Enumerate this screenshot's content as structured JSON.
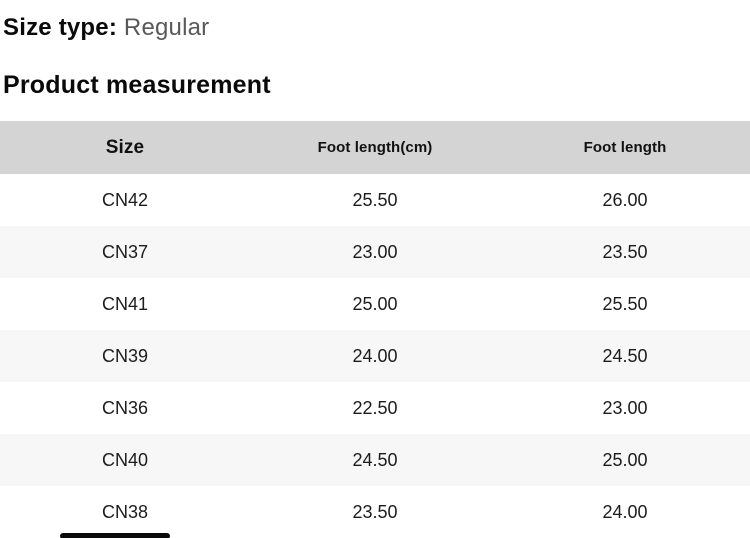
{
  "page": {
    "size_type_label": "Size type:",
    "size_type_value": "Regular",
    "section_title": "Product measurement"
  },
  "table": {
    "headers": [
      "Size",
      "Foot length(cm)",
      "Foot length"
    ],
    "rows": [
      [
        "CN42",
        "25.50",
        "26.00"
      ],
      [
        "CN37",
        "23.00",
        "23.50"
      ],
      [
        "CN41",
        "25.00",
        "25.50"
      ],
      [
        "CN39",
        "24.00",
        "24.50"
      ],
      [
        "CN36",
        "22.50",
        "23.00"
      ],
      [
        "CN40",
        "24.50",
        "25.00"
      ],
      [
        "CN38",
        "23.50",
        "24.00"
      ]
    ]
  },
  "colors": {
    "header_bg": "#d4d4d4",
    "alt_row_bg": "#f7f7f7",
    "muted_text": "#595959"
  }
}
